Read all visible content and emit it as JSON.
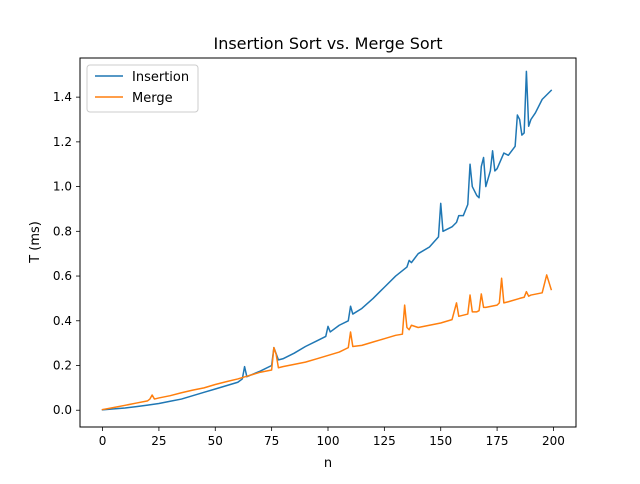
{
  "chart_data": {
    "type": "line",
    "title": "Insertion Sort vs. Merge Sort",
    "xlabel": "n",
    "ylabel": "T (ms)",
    "xlim": [
      -10,
      210
    ],
    "ylim": [
      -0.075,
      1.575
    ],
    "xticks": [
      0,
      25,
      50,
      75,
      100,
      125,
      150,
      175,
      200
    ],
    "xtick_labels": [
      "0",
      "25",
      "50",
      "75",
      "100",
      "125",
      "150",
      "175",
      "200"
    ],
    "yticks": [
      0.0,
      0.2,
      0.4,
      0.6,
      0.8,
      1.0,
      1.2,
      1.4
    ],
    "ytick_labels": [
      "0.0",
      "0.2",
      "0.4",
      "0.6",
      "0.8",
      "1.0",
      "1.2",
      "1.4"
    ],
    "grid": false,
    "legend_position": "top-left",
    "series": [
      {
        "name": "Insertion",
        "color": "#1f77b4",
        "x": [
          0,
          5,
          10,
          15,
          20,
          25,
          30,
          35,
          40,
          45,
          50,
          55,
          60,
          62,
          63,
          64,
          70,
          75,
          76,
          78,
          80,
          85,
          90,
          95,
          99,
          100,
          101,
          105,
          109,
          110,
          111,
          115,
          120,
          125,
          130,
          135,
          136,
          137,
          140,
          145,
          149,
          150,
          151,
          155,
          157,
          158,
          160,
          162,
          163,
          164,
          166,
          167,
          168,
          169,
          170,
          172,
          173,
          174,
          175,
          178,
          180,
          183,
          184,
          185,
          186,
          187,
          188,
          189,
          190,
          192,
          195,
          199
        ],
        "y": [
          0.002,
          0.006,
          0.01,
          0.016,
          0.023,
          0.03,
          0.04,
          0.05,
          0.065,
          0.08,
          0.095,
          0.11,
          0.125,
          0.14,
          0.195,
          0.15,
          0.175,
          0.2,
          0.28,
          0.225,
          0.23,
          0.255,
          0.285,
          0.31,
          0.33,
          0.375,
          0.35,
          0.38,
          0.4,
          0.465,
          0.43,
          0.455,
          0.5,
          0.55,
          0.6,
          0.64,
          0.67,
          0.66,
          0.7,
          0.73,
          0.775,
          0.925,
          0.8,
          0.82,
          0.84,
          0.87,
          0.87,
          0.92,
          1.1,
          1.0,
          0.96,
          0.95,
          1.09,
          1.13,
          1.0,
          1.07,
          1.16,
          1.07,
          1.08,
          1.15,
          1.14,
          1.18,
          1.32,
          1.3,
          1.23,
          1.24,
          1.515,
          1.27,
          1.3,
          1.33,
          1.39,
          1.43
        ]
      },
      {
        "name": "Merge",
        "color": "#ff7f0e",
        "x": [
          0,
          5,
          10,
          15,
          20,
          21,
          22,
          23,
          25,
          30,
          35,
          40,
          45,
          50,
          55,
          60,
          65,
          70,
          75,
          76,
          77,
          78,
          80,
          85,
          90,
          95,
          100,
          105,
          109,
          110,
          111,
          115,
          120,
          125,
          130,
          133,
          134,
          135,
          136,
          137,
          140,
          145,
          150,
          155,
          157,
          158,
          160,
          162,
          163,
          164,
          166,
          167,
          168,
          169,
          170,
          175,
          176,
          177,
          178,
          180,
          185,
          187,
          188,
          189,
          190,
          195,
          197,
          199
        ],
        "y": [
          0.003,
          0.012,
          0.022,
          0.032,
          0.042,
          0.05,
          0.068,
          0.05,
          0.055,
          0.065,
          0.078,
          0.09,
          0.1,
          0.115,
          0.128,
          0.14,
          0.155,
          0.17,
          0.18,
          0.28,
          0.25,
          0.19,
          0.195,
          0.205,
          0.215,
          0.23,
          0.245,
          0.26,
          0.28,
          0.35,
          0.285,
          0.29,
          0.305,
          0.32,
          0.335,
          0.34,
          0.47,
          0.37,
          0.36,
          0.38,
          0.37,
          0.38,
          0.39,
          0.405,
          0.48,
          0.42,
          0.425,
          0.43,
          0.515,
          0.44,
          0.44,
          0.445,
          0.52,
          0.46,
          0.46,
          0.47,
          0.48,
          0.59,
          0.48,
          0.485,
          0.5,
          0.505,
          0.53,
          0.51,
          0.515,
          0.525,
          0.605,
          0.54
        ]
      }
    ]
  }
}
